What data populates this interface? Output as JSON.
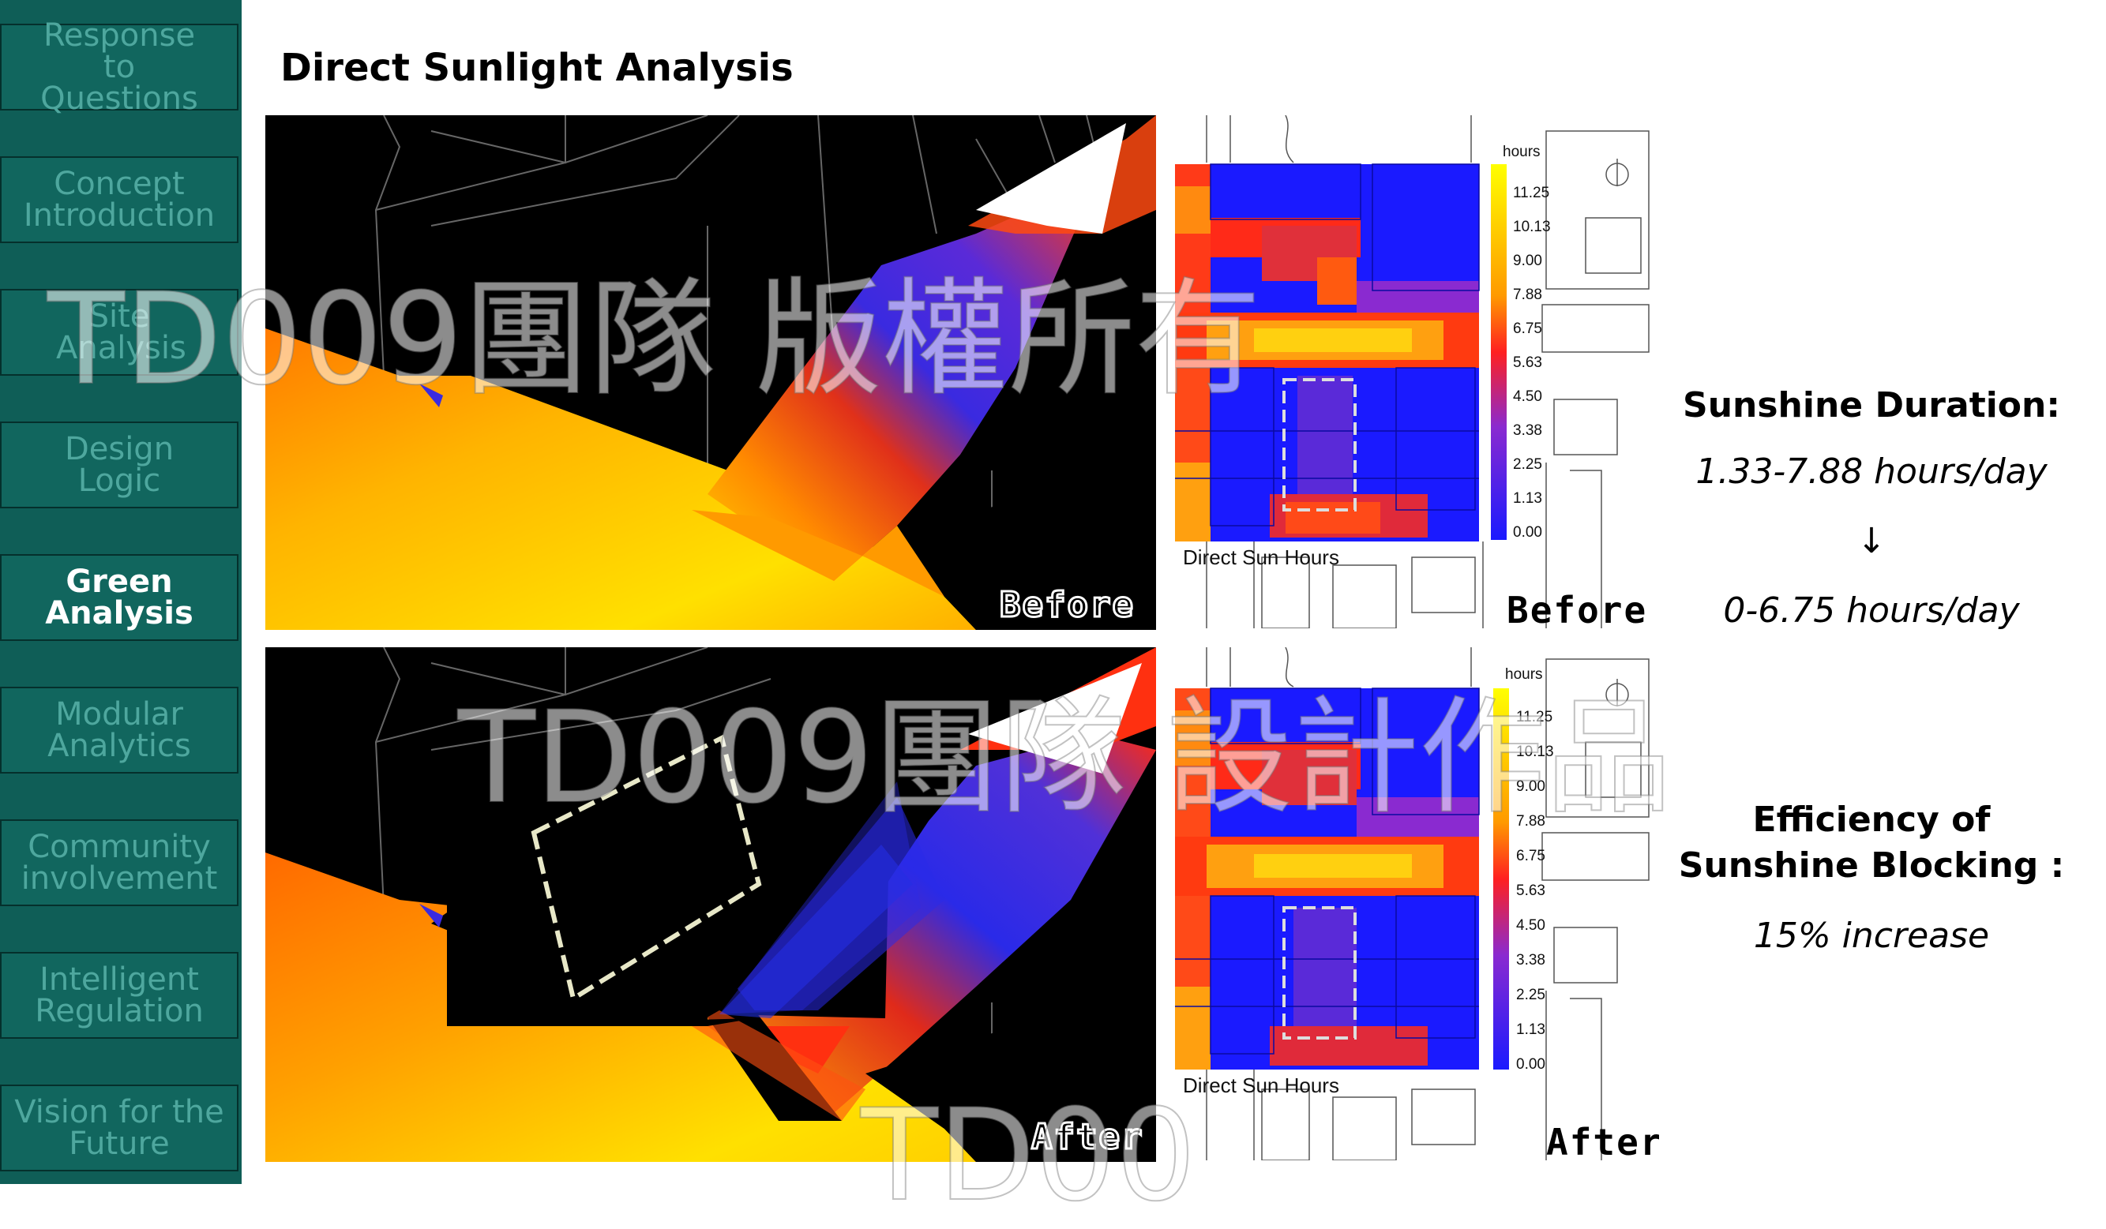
{
  "sidebar": {
    "items": [
      {
        "label": "Response to Questions",
        "active": false
      },
      {
        "label": "Concept Introduction",
        "active": false
      },
      {
        "label": "Site Analysis",
        "active": false
      },
      {
        "label": "Design Logic",
        "active": false
      },
      {
        "label": "Green Analysis",
        "active": true
      },
      {
        "label": "Modular Analytics",
        "active": false
      },
      {
        "label": "Community involvement",
        "active": false
      },
      {
        "label": "Intelligent Regulation",
        "active": false
      },
      {
        "label": "Vision for the Future",
        "active": false
      }
    ]
  },
  "page": {
    "title": "Direct Sunlight Analysis"
  },
  "views": {
    "before_tag": "Before",
    "after_tag": "After"
  },
  "plans": {
    "caption": "Direct Sun Hours",
    "legend_unit": "hours",
    "legend_ticks": [
      "11.25",
      "10.13",
      "9.00",
      "7.88",
      "6.75",
      "5.63",
      "4.50",
      "3.38",
      "2.25",
      "1.13",
      "0.00"
    ],
    "before_tag": "Before",
    "after_tag": "After"
  },
  "summary": {
    "duration_heading": "Sunshine Duration:",
    "duration_before": "1.33-7.88 hours/day",
    "arrow": "↓",
    "duration_after": "0-6.75 hours/day",
    "efficiency_heading": "Efficiency of Sunshine Blocking :",
    "efficiency_value": "15% increase"
  },
  "watermarks": [
    "TD009團隊 版權所有",
    "TD009團隊 設計作品",
    "TD00"
  ],
  "colors": {
    "sidebar_bg": "#0f5e57",
    "sidebar_item": "#11665e",
    "sidebar_text": "#4ea79e",
    "heat_high": "#ffff00",
    "heat_mid": "#ff2a1a",
    "heat_low": "#1a1aff"
  }
}
